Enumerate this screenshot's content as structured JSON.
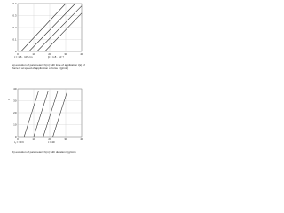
{
  "chart_data": [
    {
      "type": "line",
      "xlim": [
        0,
        40
      ],
      "xticks": [
        0,
        10,
        20,
        30,
        40
      ],
      "ylim": [
        0,
        0.4
      ],
      "yticks": [
        0,
        0.1,
        0.2,
        0.3,
        0.4
      ],
      "grid": true,
      "series": [
        {
          "color": "#333333",
          "x": [
            2,
            30
          ],
          "values": [
            0,
            0.4
          ]
        },
        {
          "color": "#333333",
          "x": [
            7,
            36
          ],
          "values": [
            0,
            0.4
          ]
        },
        {
          "color": "#333333",
          "x": [
            12,
            40
          ],
          "values": [
            0,
            0.38
          ]
        },
        {
          "color": "#333333",
          "x": [
            17,
            40
          ],
          "values": [
            0,
            0.32
          ]
        }
      ],
      "annotations": [
        "t = 1.6 · 10⁴ cm",
        "β = 1.8 · 10⁻³"
      ],
      "caption": "a) evolution of parameters h(m) with time of application t(s) of force F at speed of application of force F(g/min)"
    },
    {
      "type": "line",
      "ylabel": "h",
      "xlim": [
        0,
        40
      ],
      "xticks": [
        0,
        10,
        20,
        30,
        40
      ],
      "ylim": [
        0,
        40
      ],
      "yticks": [
        0,
        10,
        20,
        30,
        40
      ],
      "grid": true,
      "series": [
        {
          "color": "#333333",
          "x": [
            4,
            13
          ],
          "values": [
            0,
            38
          ]
        },
        {
          "color": "#333333",
          "x": [
            10,
            19
          ],
          "values": [
            0,
            38
          ]
        },
        {
          "color": "#333333",
          "x": [
            16,
            25
          ],
          "values": [
            0,
            38
          ]
        },
        {
          "color": "#333333",
          "x": [
            22,
            31
          ],
          "values": [
            0,
            38
          ]
        }
      ],
      "annotations": [
        "t₁ = 30 h",
        "t = 40"
      ],
      "caption": "b) evolution of parameters h(m) with duration t (g/min)"
    }
  ]
}
